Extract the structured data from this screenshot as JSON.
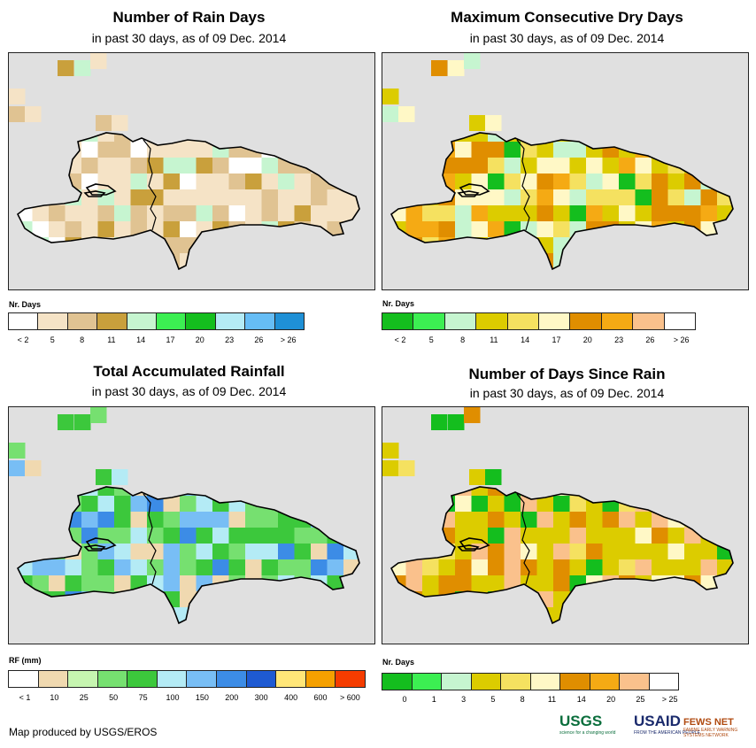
{
  "panels": [
    {
      "id": "rain-days",
      "title": "Number of Rain Days",
      "subtitle": "in past 30 days, as of 09 Dec. 2014",
      "legend_title": "Nr. Days",
      "legend_colors": [
        "#ffffff",
        "#f5e3c6",
        "#e0c392",
        "#c9a03c",
        "#c6f5d0",
        "#3cef52",
        "#14be1e",
        "#b4ebf5",
        "#66bdf5",
        "#1f90d6"
      ],
      "legend_labels": [
        "< 2",
        "5",
        "8",
        "11",
        "14",
        "17",
        "20",
        "23",
        "26",
        "> 26"
      ]
    },
    {
      "id": "max-dry-days",
      "title": "Maximum Consecutive Dry Days",
      "subtitle": "in past 30 days, as of 09 Dec. 2014",
      "legend_title": "Nr. Days",
      "legend_colors": [
        "#14be1e",
        "#3cef52",
        "#c6f5d0",
        "#dccc00",
        "#f5e160",
        "#fff8c6",
        "#e08e00",
        "#f5aa14",
        "#fac18c",
        "#ffffff"
      ],
      "legend_labels": [
        "< 2",
        "5",
        "8",
        "11",
        "14",
        "17",
        "20",
        "23",
        "26",
        "> 26"
      ]
    },
    {
      "id": "total-rainfall",
      "title": "Total Accumulated Rainfall",
      "subtitle": "in past 30 days, as of 09 Dec. 2014",
      "legend_title": "RF (mm)",
      "legend_colors": [
        "#ffffff",
        "#f0d9b0",
        "#c6f5b0",
        "#76e070",
        "#3cc83c",
        "#b4ebf5",
        "#78bef5",
        "#3c8ce6",
        "#1e5ad2",
        "#ffe678",
        "#f5a000",
        "#f53c00"
      ],
      "legend_labels": [
        "< 1",
        "10",
        "25",
        "50",
        "75",
        "100",
        "150",
        "200",
        "300",
        "400",
        "600",
        "> 600"
      ]
    },
    {
      "id": "days-since-rain",
      "title": "Number of Days Since Rain",
      "subtitle": "in past 30 days, as of 09 Dec. 2014",
      "legend_title": "Nr. Days",
      "legend_colors": [
        "#14be1e",
        "#3cef52",
        "#c6f5d0",
        "#dccc00",
        "#f5e160",
        "#fff8c6",
        "#e08e00",
        "#f5aa14",
        "#fac18c",
        "#ffffff"
      ],
      "legend_labels": [
        "0",
        "1",
        "3",
        "5",
        "8",
        "11",
        "14",
        "20",
        "25",
        "> 25"
      ]
    }
  ],
  "credit": "Map produced by USGS/EROS",
  "logos": {
    "usgs": "USGS",
    "usgs_tag": "science for a changing world",
    "usaid": "USAID",
    "usaid_tag": "FROM THE AMERICAN PEOPLE",
    "fews": "FEWS NET",
    "fews_tag": "FAMINE EARLY WARNING SYSTEMS NETWORK"
  }
}
